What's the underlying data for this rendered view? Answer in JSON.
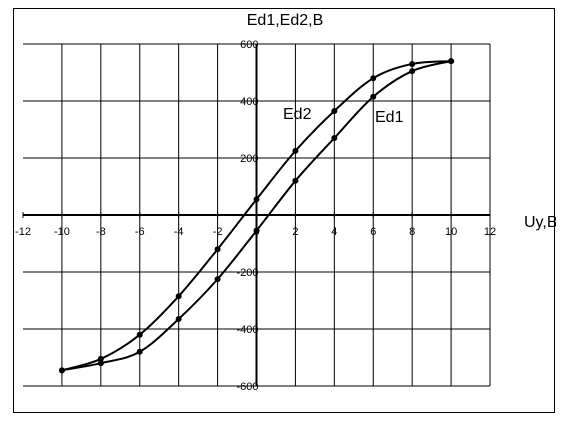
{
  "chart_data": {
    "type": "line",
    "title": "Ed1,Ed2,B",
    "xlabel": "Uy,B",
    "ylabel": "",
    "xlim": [
      -12,
      12
    ],
    "ylim": [
      -600,
      600
    ],
    "xticks": [
      -12,
      -10,
      -8,
      -6,
      -4,
      -2,
      0,
      2,
      4,
      6,
      8,
      10,
      12
    ],
    "yticks": [
      -600,
      -400,
      -200,
      0,
      200,
      400,
      600
    ],
    "grid": true,
    "series": [
      {
        "name": "Ed1",
        "x": [
          -10,
          -8,
          -6,
          -4,
          -2,
          0,
          2,
          4,
          6,
          8,
          10
        ],
        "y": [
          -545,
          -520,
          -480,
          -365,
          -225,
          -55,
          120,
          270,
          415,
          505,
          540
        ]
      },
      {
        "name": "Ed2",
        "x": [
          10,
          8,
          6,
          4,
          2,
          0,
          -2,
          -4,
          -6,
          -8,
          -10
        ],
        "y": [
          540,
          530,
          480,
          365,
          225,
          55,
          -120,
          -285,
          -420,
          -505,
          -545
        ]
      }
    ]
  }
}
